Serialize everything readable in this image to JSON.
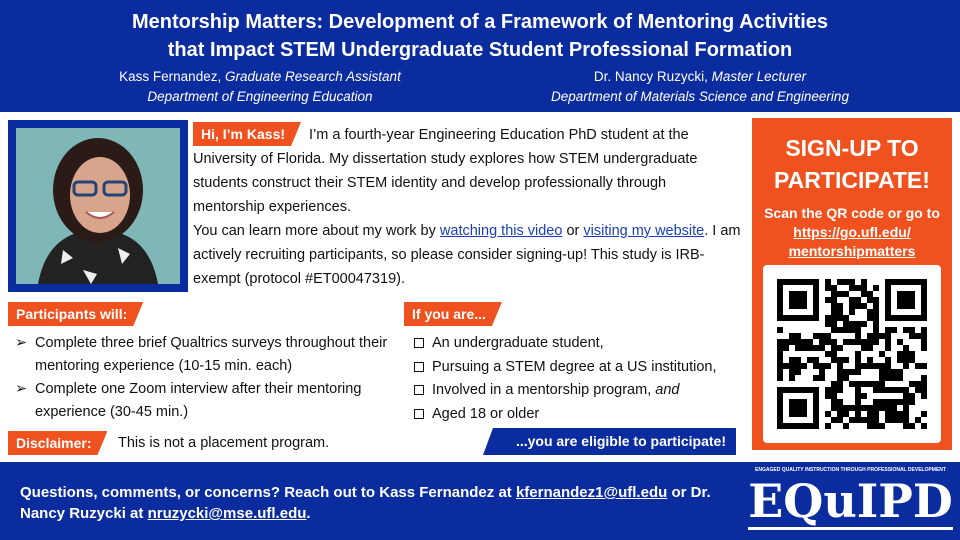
{
  "header": {
    "title_line1": "Mentorship Matters: Development of a Framework of Mentoring Activities",
    "title_line2": "that Impact STEM Undergraduate Student Professional Formation",
    "authors": [
      {
        "name": "Kass Fernandez,",
        "role": "Graduate Research Assistant",
        "department": "Department of Engineering Education"
      },
      {
        "name": "Dr. Nancy Ruzycki,",
        "role": "Master Lecturer",
        "department": "Department of Materials Science and Engineering"
      }
    ]
  },
  "intro": {
    "tag": "Hi, I’m Kass!",
    "paragraph1": "I’m a fourth-year Engineering Education PhD student at the University of Florida. My dissertation study explores how STEM undergraduate students construct their STEM identity and develop professionally through mentorship experiences.",
    "paragraph2": {
      "before": "You can learn more about my work by ",
      "link1": "watching this video",
      "between": " or ",
      "link2": "visiting my website",
      "after": ". I am actively recruiting participants, so please consider signing-up! This study is IRB-exempt (protocol #ET00047319)."
    }
  },
  "participants": {
    "tag": "Participants will:",
    "items": [
      "Complete three brief Qualtrics surveys throughout their mentoring experience (10-15 min. each)",
      "Complete one Zoom interview after their mentoring experience (30-45 min.)"
    ]
  },
  "eligibility": {
    "tag": "If you are...",
    "items": [
      {
        "text": "An undergraduate student,"
      },
      {
        "text": "Pursuing a STEM degree at a US institution,"
      },
      {
        "text": "Involved in a mentorship program, ",
        "em": "and"
      },
      {
        "text": "Aged 18 or older"
      }
    ],
    "conclusion": "...you are eligible to participate!"
  },
  "disclaimer": {
    "tag": "Disclaimer:",
    "text": "This is not a placement program."
  },
  "signup": {
    "heading": "SIGN-UP TO PARTICIPATE!",
    "instruction": "Scan the QR code or go to",
    "url": [
      "https://go.ufl.edu/",
      "mentorshipmatters"
    ]
  },
  "footer": {
    "before": "Questions, comments, or concerns? Reach out to Kass Fernandez at ",
    "email1": "kfernandez1@ufl.edu",
    "between": " or Dr. Nancy Ruzycki at ",
    "email2": "nruzycki@mse.ufl.edu",
    "after": "."
  },
  "logo": {
    "tagline": "ENGAGED QUALITY INSTRUCTION THROUGH PROFESSIONAL DEVELOPMENT",
    "name": "EQuIPD"
  }
}
